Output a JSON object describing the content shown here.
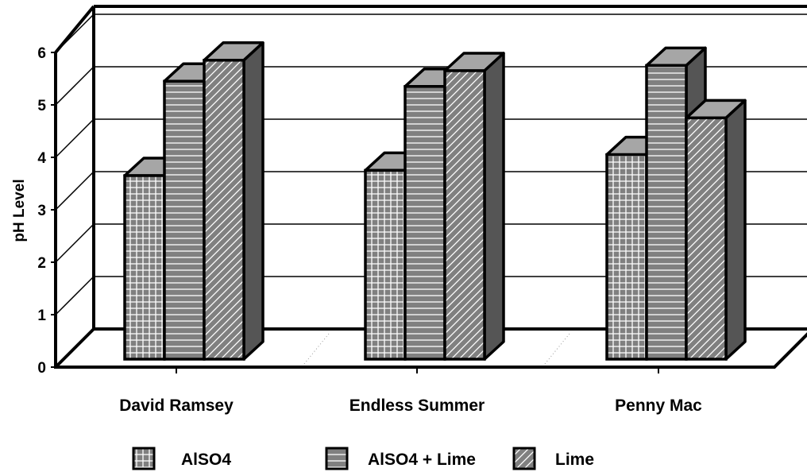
{
  "chart_data": {
    "type": "bar",
    "style": "3d-clustered-column",
    "title": "",
    "xlabel": "",
    "ylabel": "pH Level",
    "ylim": [
      0,
      6
    ],
    "yticks": [
      0,
      1,
      2,
      3,
      4,
      5,
      6
    ],
    "categories": [
      "David Ramsey",
      "Endless Summer",
      "Penny Mac"
    ],
    "series": [
      {
        "name": "AlSO4",
        "values": [
          3.5,
          3.6,
          3.9
        ],
        "pattern": "grid"
      },
      {
        "name": "AlSO4 + Lime",
        "values": [
          5.3,
          5.2,
          5.6
        ],
        "pattern": "horizontal-lines"
      },
      {
        "name": "Lime",
        "values": [
          5.7,
          5.5,
          4.6
        ],
        "pattern": "diagonal-lines"
      }
    ],
    "grid": true,
    "legend": "bottom",
    "colors": {
      "bar_face": "#808080",
      "bar_side": "#555555",
      "bar_top": "#a6a6a6",
      "line": "#000000"
    }
  }
}
